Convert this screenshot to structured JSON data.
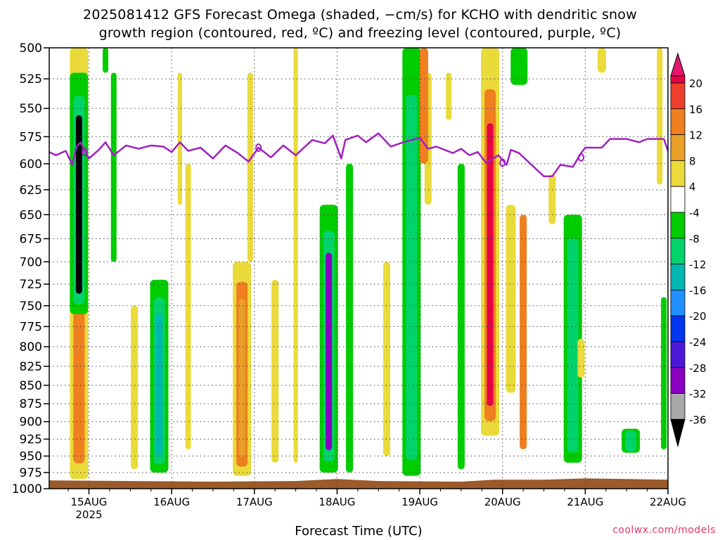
{
  "title": {
    "line1": "2025081412 GFS Forecast Omega (shaded, −cm/s) for KCHO with dendritic snow",
    "line2": "growth region (contoured, red, ºC) and freezing level (contoured, purple, ºC)"
  },
  "watermark": "coolwx.com/models",
  "chart_data": {
    "type": "heatmap",
    "xlabel": "Forecast Time (UTC)",
    "ylabel": "",
    "x_ticks": [
      "15AUG",
      "16AUG",
      "17AUG",
      "18AUG",
      "19AUG",
      "20AUG",
      "21AUG",
      "22AUG"
    ],
    "x_year_label": "2025",
    "x_range_days": [
      14.52,
      22.0
    ],
    "y_ticks": [
      500,
      525,
      550,
      575,
      600,
      625,
      650,
      675,
      700,
      725,
      750,
      775,
      800,
      825,
      850,
      875,
      900,
      925,
      950,
      975,
      1000
    ],
    "y_range_hPa": [
      500,
      1000
    ],
    "y_scale": "log-pressure",
    "grid": "dotted",
    "colorbar": {
      "ticks": [
        "20",
        "16",
        "12",
        "8",
        "4",
        "-4",
        "-8",
        "-12",
        "-16",
        "-20",
        "-24",
        "-28",
        "-32",
        "-36"
      ],
      "colors": [
        "#e60045",
        "#ee3f2c",
        "#ef7f1f",
        "#e8a028",
        "#e6c840",
        "#eada3a",
        "#ffffff",
        "#00cc00",
        "#00d36a",
        "#00b8b0",
        "#1e90ff",
        "#0036f0",
        "#4b18d8",
        "#8a00c0",
        "#b000d0",
        "#a8a8a8"
      ],
      "top_arrow_color": "#e3156c",
      "bottom_arrow_color": "#000000"
    },
    "freezing_level": {
      "color": "#a020c0",
      "points": [
        [
          14.52,
          589
        ],
        [
          14.6,
          592
        ],
        [
          14.72,
          588
        ],
        [
          14.8,
          601
        ],
        [
          14.85,
          584
        ],
        [
          14.9,
          580
        ],
        [
          14.95,
          588
        ],
        [
          15.0,
          595
        ],
        [
          15.12,
          587
        ],
        [
          15.2,
          580
        ],
        [
          15.3,
          592
        ],
        [
          15.45,
          583
        ],
        [
          15.6,
          586
        ],
        [
          15.75,
          583
        ],
        [
          15.9,
          584
        ],
        [
          16.0,
          589
        ],
        [
          16.1,
          580
        ],
        [
          16.2,
          588
        ],
        [
          16.35,
          585
        ],
        [
          16.5,
          595
        ],
        [
          16.65,
          583
        ],
        [
          16.8,
          590
        ],
        [
          16.93,
          598
        ],
        [
          17.05,
          585
        ],
        [
          17.2,
          594
        ],
        [
          17.35,
          583
        ],
        [
          17.5,
          592
        ],
        [
          17.7,
          578
        ],
        [
          17.85,
          581
        ],
        [
          17.95,
          574
        ],
        [
          18.05,
          595
        ],
        [
          18.1,
          578
        ],
        [
          18.25,
          574
        ],
        [
          18.35,
          580
        ],
        [
          18.5,
          572
        ],
        [
          18.65,
          584
        ],
        [
          18.8,
          580
        ],
        [
          19.0,
          576
        ],
        [
          19.1,
          586
        ],
        [
          19.2,
          584
        ],
        [
          19.4,
          590
        ],
        [
          19.5,
          586
        ],
        [
          19.6,
          592
        ],
        [
          19.7,
          589
        ],
        [
          19.8,
          599
        ],
        [
          19.95,
          592
        ],
        [
          20.05,
          601
        ],
        [
          20.1,
          587
        ],
        [
          20.2,
          590
        ],
        [
          20.35,
          601
        ],
        [
          20.5,
          612
        ],
        [
          20.6,
          612
        ],
        [
          20.7,
          601
        ],
        [
          20.85,
          603
        ],
        [
          20.95,
          590
        ],
        [
          21.0,
          585
        ],
        [
          21.2,
          585
        ],
        [
          21.3,
          577
        ],
        [
          21.5,
          577
        ],
        [
          21.65,
          580
        ],
        [
          21.75,
          577
        ],
        [
          21.95,
          577
        ],
        [
          22.0,
          588
        ]
      ]
    },
    "features": [
      {
        "t": 14.88,
        "p0": 500,
        "p1": 985,
        "value": 12
      },
      {
        "t": 14.88,
        "p0": 520,
        "p1": 760,
        "value": -36
      },
      {
        "t": 15.85,
        "p0": 720,
        "p1": 975,
        "value": -12
      },
      {
        "t": 16.85,
        "p0": 700,
        "p1": 980,
        "value": 8
      },
      {
        "t": 17.9,
        "p0": 640,
        "p1": 975,
        "value": -28
      },
      {
        "t": 18.9,
        "p0": 500,
        "p1": 980,
        "value": -8
      },
      {
        "t": 19.85,
        "p0": 500,
        "p1": 920,
        "value": 20
      },
      {
        "t": 20.85,
        "p0": 650,
        "p1": 960,
        "value": -8
      },
      {
        "t": 21.55,
        "p0": 910,
        "p1": 945,
        "value": -8
      }
    ]
  }
}
